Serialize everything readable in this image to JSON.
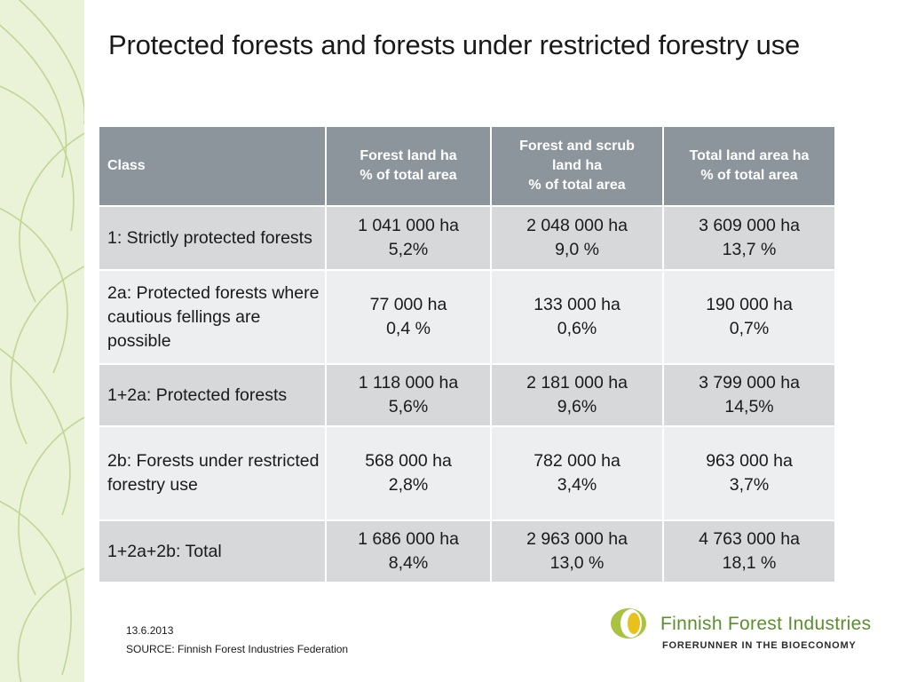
{
  "slide": {
    "title": "Protected forests and forests under restricted forestry use",
    "date": "13.6.2013",
    "source": "SOURCE: Finnish Forest Industries Federation"
  },
  "logo": {
    "name": "Finnish Forest Industries",
    "tagline": "FORERUNNER IN THE BIOECONOMY"
  },
  "table": {
    "headers": [
      {
        "lines": [
          "Class"
        ]
      },
      {
        "lines": [
          "Forest land ha",
          "%  of  total  area"
        ]
      },
      {
        "lines": [
          "Forest and scrub",
          "land ha",
          "% of  total area"
        ]
      },
      {
        "lines": [
          "Total land area ha",
          "%  of total area"
        ]
      }
    ],
    "rows": [
      {
        "class": "1: Strictly protected forests",
        "forest_land": [
          "1 041 000 ha",
          "5,2%"
        ],
        "forest_scrub": [
          "2 048 000 ha",
          "9,0 %"
        ],
        "total_land": [
          "3 609 000 ha",
          "13,7 %"
        ]
      },
      {
        "class": "2a: Protected forests where cautious fellings are possible",
        "forest_land": [
          "77 000 ha",
          "0,4 %"
        ],
        "forest_scrub": [
          "133 000 ha",
          "0,6%"
        ],
        "total_land": [
          "190 000 ha",
          "0,7%"
        ]
      },
      {
        "class": "1+2a: Protected forests",
        "forest_land": [
          "1 118 000 ha",
          "5,6%"
        ],
        "forest_scrub": [
          "2 181 000 ha",
          "9,6%"
        ],
        "total_land": [
          "3 799 000 ha",
          "14,5%"
        ]
      },
      {
        "class": "2b: Forests under restricted forestry use",
        "forest_land": [
          "568 000 ha",
          "2,8%"
        ],
        "forest_scrub": [
          "782 000 ha",
          "3,4%"
        ],
        "total_land": [
          "963 000 ha",
          "3,7%"
        ]
      },
      {
        "class": "1+2a+2b: Total",
        "forest_land": [
          "1 686 000 ha",
          "8,4%"
        ],
        "forest_scrub": [
          "2 963 000 ha",
          "13,0 %"
        ],
        "total_land": [
          "4 763 000 ha",
          "18,1 %"
        ]
      }
    ]
  },
  "colors": {
    "header_bg": "#8c949c",
    "row_dark": "#d6d8da",
    "row_light": "#eceeef",
    "band": "#eaf2d8",
    "brand_green": "#5b8f2c"
  }
}
